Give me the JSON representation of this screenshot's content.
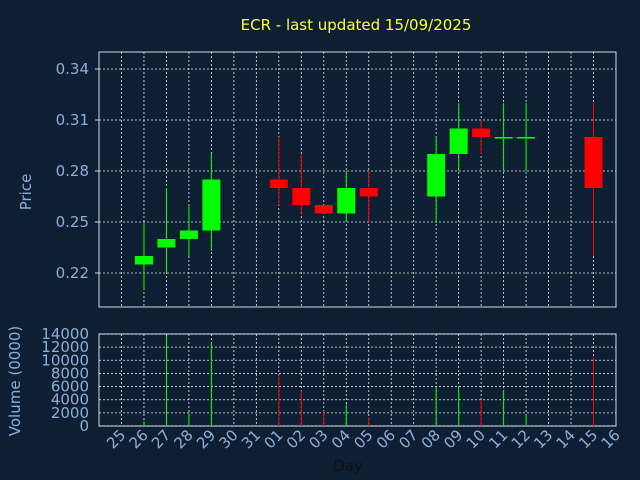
{
  "chart_data": [
    {
      "type": "candlestick",
      "title": "ECR - last updated 15/09/2025",
      "ylabel": "Price",
      "ylim": [
        0.2,
        0.35
      ],
      "yticks": [
        "0.22",
        "0.25",
        "0.28",
        "0.31",
        "0.34"
      ],
      "grid": true,
      "colors": {
        "up": "#00ff00",
        "down": "#ff0000"
      },
      "candles": [
        {
          "day": "26",
          "open": 0.225,
          "high": 0.25,
          "low": 0.21,
          "close": 0.23
        },
        {
          "day": "27",
          "open": 0.235,
          "high": 0.27,
          "low": 0.22,
          "close": 0.24
        },
        {
          "day": "28",
          "open": 0.24,
          "high": 0.26,
          "low": 0.23,
          "close": 0.245
        },
        {
          "day": "29",
          "open": 0.245,
          "high": 0.29,
          "low": 0.233,
          "close": 0.275
        },
        {
          "day": "01",
          "open": 0.275,
          "high": 0.3,
          "low": 0.26,
          "close": 0.27
        },
        {
          "day": "02",
          "open": 0.27,
          "high": 0.29,
          "low": 0.255,
          "close": 0.26
        },
        {
          "day": "03",
          "open": 0.26,
          "high": 0.26,
          "low": 0.255,
          "close": 0.255
        },
        {
          "day": "04",
          "open": 0.255,
          "high": 0.28,
          "low": 0.25,
          "close": 0.27
        },
        {
          "day": "05",
          "open": 0.27,
          "high": 0.28,
          "low": 0.25,
          "close": 0.265
        },
        {
          "day": "08",
          "open": 0.265,
          "high": 0.3,
          "low": 0.25,
          "close": 0.29
        },
        {
          "day": "09",
          "open": 0.29,
          "high": 0.32,
          "low": 0.28,
          "close": 0.305
        },
        {
          "day": "10",
          "open": 0.305,
          "high": 0.31,
          "low": 0.29,
          "close": 0.3
        },
        {
          "day": "11",
          "open": 0.3,
          "high": 0.32,
          "low": 0.28,
          "close": 0.3
        },
        {
          "day": "12",
          "open": 0.3,
          "high": 0.32,
          "low": 0.28,
          "close": 0.3
        },
        {
          "day": "15",
          "open": 0.3,
          "high": 0.32,
          "low": 0.23,
          "close": 0.27
        }
      ]
    },
    {
      "type": "bar",
      "ylabel": "Volume (0000)",
      "ylim": [
        0,
        14000
      ],
      "yticks": [
        "0",
        "2000",
        "4000",
        "6000",
        "8000",
        "10000",
        "12000",
        "14000"
      ],
      "grid": true,
      "xlabel": "Day",
      "categories": [
        "25",
        "26",
        "27",
        "28",
        "29",
        "30",
        "31",
        "01",
        "02",
        "03",
        "04",
        "05",
        "06",
        "07",
        "08",
        "09",
        "10",
        "11",
        "12",
        "13",
        "14",
        "15",
        "16"
      ],
      "values": [
        0,
        700,
        13700,
        2000,
        12800,
        0,
        0,
        7800,
        5400,
        2300,
        3300,
        1300,
        0,
        0,
        6000,
        6000,
        4000,
        5500,
        1600,
        0,
        0,
        10500,
        0
      ],
      "bar_colors": [
        "#00ff00",
        "#00ff00",
        "#00ff00",
        "#00ff00",
        "#00ff00",
        "#00ff00",
        "#00ff00",
        "#ff0000",
        "#ff0000",
        "#ff0000",
        "#00ff00",
        "#ff0000",
        "#00ff00",
        "#00ff00",
        "#00ff00",
        "#00ff00",
        "#ff0000",
        "#00ff00",
        "#00ff00",
        "#00ff00",
        "#00ff00",
        "#ff0000",
        "#00ff00"
      ]
    }
  ]
}
